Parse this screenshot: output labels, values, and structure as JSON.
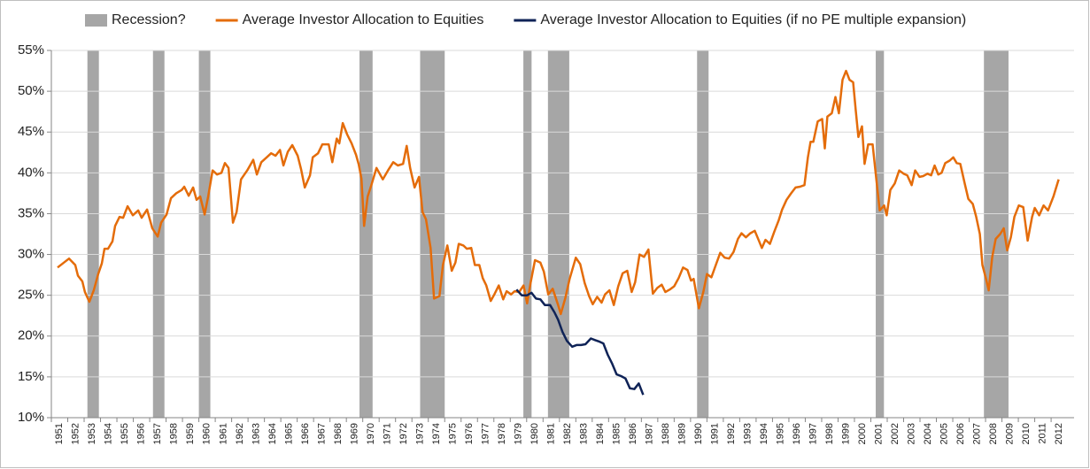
{
  "chart_data": {
    "type": "line",
    "xlim": [
      1951,
      2013.4
    ],
    "xticks": [
      1951,
      1952,
      1953,
      1954,
      1955,
      1956,
      1957,
      1958,
      1959,
      1960,
      1961,
      1962,
      1963,
      1964,
      1965,
      1966,
      1967,
      1968,
      1969,
      1970,
      1971,
      1972,
      1973,
      1974,
      1975,
      1976,
      1977,
      1978,
      1979,
      1980,
      1981,
      1982,
      1983,
      1984,
      1985,
      1986,
      1987,
      1988,
      1989,
      1990,
      1991,
      1992,
      1993,
      1994,
      1995,
      1996,
      1997,
      1998,
      1999,
      2000,
      2001,
      2002,
      2003,
      2004,
      2005,
      2006,
      2007,
      2008,
      2009,
      2010,
      2011,
      2012
    ],
    "ylim": [
      10,
      55
    ],
    "yticks": [
      {
        "value": 10,
        "label": "10%"
      },
      {
        "value": 15,
        "label": "15%"
      },
      {
        "value": 20,
        "label": "20%"
      },
      {
        "value": 25,
        "label": "25%"
      },
      {
        "value": 30,
        "label": "30%"
      },
      {
        "value": 35,
        "label": "35%"
      },
      {
        "value": 40,
        "label": "40%"
      },
      {
        "value": 45,
        "label": "45%"
      },
      {
        "value": 50,
        "label": "50%"
      },
      {
        "value": 55,
        "label": "55%"
      }
    ],
    "grid": true,
    "legend": "top",
    "series": [
      {
        "name": "Recession?",
        "type": "band",
        "color": "#a6a6a6",
        "ranges": [
          [
            1953.2,
            1953.9
          ],
          [
            1957.2,
            1957.9
          ],
          [
            1960.0,
            1960.7
          ],
          [
            1969.8,
            1970.6
          ],
          [
            1973.5,
            1975.0
          ],
          [
            1979.8,
            1980.3
          ],
          [
            1981.3,
            1982.6
          ],
          [
            1990.4,
            1991.1
          ],
          [
            2001.3,
            2001.8
          ],
          [
            2007.9,
            2009.4
          ]
        ]
      },
      {
        "name": "Average Investor Allocation to Equities",
        "type": "line",
        "color": "#e46c0a",
        "x": [
          1951.38,
          1952.08,
          1952.46,
          1952.62,
          1952.89,
          1953.05,
          1953.32,
          1953.59,
          1953.86,
          1954.08,
          1954.24,
          1954.46,
          1954.73,
          1954.89,
          1955.16,
          1955.38,
          1955.65,
          1955.97,
          1956.3,
          1956.51,
          1956.84,
          1957.16,
          1957.49,
          1957.7,
          1958.03,
          1958.3,
          1958.62,
          1958.95,
          1959.11,
          1959.38,
          1959.65,
          1959.86,
          1960.08,
          1960.35,
          1960.57,
          1960.84,
          1961.11,
          1961.38,
          1961.59,
          1961.81,
          1962.08,
          1962.3,
          1962.57,
          1962.95,
          1963.32,
          1963.54,
          1963.81,
          1964.14,
          1964.41,
          1964.68,
          1964.95,
          1965.16,
          1965.43,
          1965.7,
          1966.03,
          1966.24,
          1966.46,
          1966.78,
          1966.95,
          1967.27,
          1967.54,
          1967.92,
          1968.14,
          1968.41,
          1968.57,
          1968.78,
          1969.05,
          1969.32,
          1969.59,
          1969.76,
          1969.92,
          1970.08,
          1970.3,
          1970.51,
          1970.84,
          1971.22,
          1971.54,
          1971.86,
          1972.14,
          1972.46,
          1972.68,
          1972.89,
          1973.16,
          1973.43,
          1973.65,
          1973.86,
          1974.14,
          1974.35,
          1974.68,
          1974.89,
          1975.16,
          1975.43,
          1975.65,
          1975.86,
          1976.14,
          1976.35,
          1976.62,
          1976.84,
          1977.11,
          1977.32,
          1977.54,
          1977.81,
          1978.03,
          1978.3,
          1978.57,
          1978.78,
          1979.05,
          1979.27,
          1979.54,
          1979.81,
          1980.03,
          1980.24,
          1980.51,
          1980.84,
          1981.05,
          1981.32,
          1981.59,
          1981.92,
          1982.08,
          1982.35,
          1982.62,
          1983.0,
          1983.27,
          1983.54,
          1983.81,
          1984.03,
          1984.3,
          1984.57,
          1984.78,
          1985.05,
          1985.32,
          1985.59,
          1985.86,
          1986.14,
          1986.41,
          1986.62,
          1986.89,
          1987.16,
          1987.43,
          1987.7,
          1987.97,
          1988.24,
          1988.46,
          1988.73,
          1989.0,
          1989.27,
          1989.54,
          1989.81,
          1990.03,
          1990.19,
          1990.51,
          1990.78,
          1991.0,
          1991.27,
          1991.54,
          1991.81,
          1992.08,
          1992.35,
          1992.62,
          1992.89,
          1993.11,
          1993.38,
          1993.65,
          1993.92,
          1994.19,
          1994.35,
          1994.57,
          1994.84,
          1995.11,
          1995.38,
          1995.59,
          1995.86,
          1996.14,
          1996.41,
          1996.68,
          1996.95,
          1997.16,
          1997.32,
          1997.49,
          1997.76,
          1998.03,
          1998.19,
          1998.35,
          1998.62,
          1998.84,
          1999.05,
          1999.27,
          1999.49,
          1999.7,
          1999.92,
          2000.08,
          2000.24,
          2000.46,
          2000.62,
          2000.84,
          2001.11,
          2001.32,
          2001.54,
          2001.81,
          2001.97,
          2002.19,
          2002.46,
          2002.73,
          2003.0,
          2003.22,
          2003.49,
          2003.7,
          2003.97,
          2004.19,
          2004.46,
          2004.68,
          2004.89,
          2005.11,
          2005.32,
          2005.54,
          2005.81,
          2006.03,
          2006.24,
          2006.46,
          2006.73,
          2006.95,
          2007.22,
          2007.43,
          2007.65,
          2007.81,
          2008.03,
          2008.19,
          2008.41,
          2008.62,
          2008.89,
          2009.11,
          2009.32,
          2009.54,
          2009.76,
          2010.03,
          2010.3,
          2010.57,
          2010.84,
          2011.0,
          2011.27,
          2011.54,
          2011.81,
          2012.14,
          2012.46
        ],
        "values": [
          28.4,
          29.5,
          28.7,
          27.4,
          26.7,
          25.4,
          24.2,
          25.6,
          27.6,
          28.9,
          30.7,
          30.7,
          31.6,
          33.5,
          34.6,
          34.5,
          35.9,
          34.8,
          35.4,
          34.5,
          35.5,
          33.2,
          32.2,
          33.9,
          34.9,
          36.9,
          37.5,
          37.9,
          38.3,
          37.2,
          38.2,
          36.7,
          37.1,
          34.9,
          37.1,
          40.3,
          39.8,
          40.0,
          41.2,
          40.6,
          33.9,
          35.2,
          39.2,
          40.3,
          41.6,
          39.8,
          41.3,
          41.9,
          42.4,
          42.1,
          42.8,
          40.9,
          42.6,
          43.4,
          42.1,
          40.4,
          38.2,
          39.7,
          41.9,
          42.4,
          43.5,
          43.5,
          41.3,
          44.2,
          43.6,
          46.1,
          44.7,
          43.6,
          42.2,
          41.0,
          39.3,
          33.5,
          37.1,
          38.4,
          40.6,
          39.2,
          40.3,
          41.3,
          40.9,
          41.1,
          43.3,
          40.6,
          38.2,
          39.5,
          35.2,
          34.3,
          30.8,
          24.6,
          24.9,
          28.7,
          31.1,
          28.0,
          29.0,
          31.3,
          31.1,
          30.7,
          30.8,
          28.7,
          28.7,
          27.1,
          26.2,
          24.3,
          25.1,
          26.2,
          24.5,
          25.5,
          25.1,
          25.5,
          25.4,
          26.2,
          24.0,
          26.5,
          29.3,
          29.0,
          27.9,
          25.1,
          25.8,
          23.8,
          22.7,
          24.6,
          27.0,
          29.6,
          28.8,
          26.5,
          24.9,
          23.9,
          24.8,
          24.1,
          25.1,
          25.6,
          23.8,
          26.1,
          27.7,
          28.0,
          25.4,
          26.6,
          30.0,
          29.7,
          30.6,
          25.2,
          25.9,
          26.3,
          25.4,
          25.7,
          26.1,
          27.1,
          28.4,
          28.1,
          26.8,
          27.0,
          23.4,
          25.4,
          27.6,
          27.2,
          28.7,
          30.2,
          29.6,
          29.5,
          30.3,
          31.9,
          32.6,
          32.1,
          32.6,
          32.9,
          31.6,
          30.8,
          31.8,
          31.3,
          32.8,
          34.2,
          35.5,
          36.7,
          37.5,
          38.2,
          38.3,
          38.5,
          41.9,
          43.8,
          43.8,
          46.3,
          46.6,
          43.0,
          46.9,
          47.3,
          49.3,
          47.3,
          51.4,
          52.5,
          51.4,
          51.1,
          47.6,
          44.4,
          45.7,
          41.1,
          43.5,
          43.5,
          39.5,
          35.4,
          36.0,
          34.8,
          37.9,
          38.7,
          40.3,
          39.9,
          39.7,
          38.5,
          40.3,
          39.5,
          39.6,
          39.9,
          39.7,
          40.9,
          39.8,
          40.0,
          41.2,
          41.5,
          41.9,
          41.2,
          41.1,
          38.7,
          36.8,
          36.2,
          34.6,
          32.5,
          28.7,
          27.0,
          25.6,
          29.7,
          31.9,
          32.5,
          33.2,
          30.5,
          32.1,
          34.6,
          36.0,
          35.8,
          31.7,
          34.6,
          35.7,
          34.8,
          36.0,
          35.4,
          37.1,
          39.2
        ]
      },
      {
        "name": "Average Investor Allocation to Equities (if no PE multiple expansion)",
        "type": "line",
        "color": "#0f2357",
        "x": [
          1979.38,
          1979.7,
          1980.03,
          1980.3,
          1980.57,
          1980.84,
          1981.11,
          1981.43,
          1981.7,
          1981.92,
          1982.19,
          1982.46,
          1982.78,
          1983.05,
          1983.32,
          1983.59,
          1983.92,
          1984.19,
          1984.46,
          1984.68,
          1984.95,
          1985.22,
          1985.49,
          1985.76,
          1986.03,
          1986.3,
          1986.57,
          1986.84,
          1987.11
        ],
        "values": [
          25.7,
          25.0,
          25.0,
          25.3,
          24.6,
          24.5,
          23.8,
          23.8,
          22.9,
          22.0,
          20.5,
          19.4,
          18.7,
          18.9,
          18.9,
          19.0,
          19.7,
          19.5,
          19.3,
          19.1,
          17.7,
          16.6,
          15.3,
          15.1,
          14.8,
          13.6,
          13.5,
          14.2,
          12.8
        ]
      }
    ]
  }
}
